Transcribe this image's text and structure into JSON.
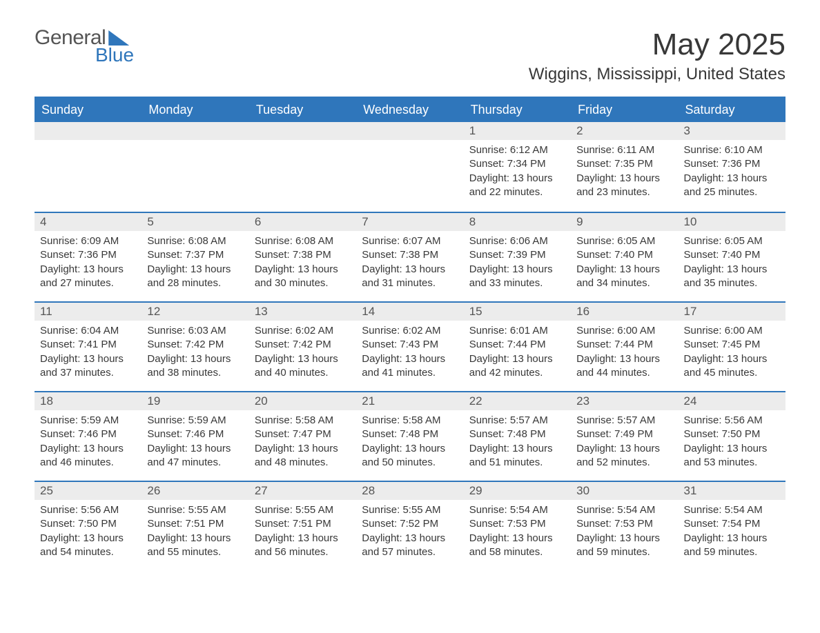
{
  "logo": {
    "line1": "General",
    "line2": "Blue"
  },
  "header": {
    "month_title": "May 2025",
    "location": "Wiggins, Mississippi, United States"
  },
  "colors": {
    "header_bg": "#2f76bb",
    "header_text": "#ffffff",
    "daynum_bg": "#ececec",
    "rule": "#2f76bb",
    "body_text": "#383838"
  },
  "calendar": {
    "weekday_labels": [
      "Sunday",
      "Monday",
      "Tuesday",
      "Wednesday",
      "Thursday",
      "Friday",
      "Saturday"
    ],
    "label_sunrise": "Sunrise:",
    "label_sunset": "Sunset:",
    "label_daylight_prefix": "Daylight:",
    "weeks": [
      [
        null,
        null,
        null,
        null,
        {
          "day": "1",
          "sunrise": "6:12 AM",
          "sunset": "7:34 PM",
          "daylight": "13 hours and 22 minutes."
        },
        {
          "day": "2",
          "sunrise": "6:11 AM",
          "sunset": "7:35 PM",
          "daylight": "13 hours and 23 minutes."
        },
        {
          "day": "3",
          "sunrise": "6:10 AM",
          "sunset": "7:36 PM",
          "daylight": "13 hours and 25 minutes."
        }
      ],
      [
        {
          "day": "4",
          "sunrise": "6:09 AM",
          "sunset": "7:36 PM",
          "daylight": "13 hours and 27 minutes."
        },
        {
          "day": "5",
          "sunrise": "6:08 AM",
          "sunset": "7:37 PM",
          "daylight": "13 hours and 28 minutes."
        },
        {
          "day": "6",
          "sunrise": "6:08 AM",
          "sunset": "7:38 PM",
          "daylight": "13 hours and 30 minutes."
        },
        {
          "day": "7",
          "sunrise": "6:07 AM",
          "sunset": "7:38 PM",
          "daylight": "13 hours and 31 minutes."
        },
        {
          "day": "8",
          "sunrise": "6:06 AM",
          "sunset": "7:39 PM",
          "daylight": "13 hours and 33 minutes."
        },
        {
          "day": "9",
          "sunrise": "6:05 AM",
          "sunset": "7:40 PM",
          "daylight": "13 hours and 34 minutes."
        },
        {
          "day": "10",
          "sunrise": "6:05 AM",
          "sunset": "7:40 PM",
          "daylight": "13 hours and 35 minutes."
        }
      ],
      [
        {
          "day": "11",
          "sunrise": "6:04 AM",
          "sunset": "7:41 PM",
          "daylight": "13 hours and 37 minutes."
        },
        {
          "day": "12",
          "sunrise": "6:03 AM",
          "sunset": "7:42 PM",
          "daylight": "13 hours and 38 minutes."
        },
        {
          "day": "13",
          "sunrise": "6:02 AM",
          "sunset": "7:42 PM",
          "daylight": "13 hours and 40 minutes."
        },
        {
          "day": "14",
          "sunrise": "6:02 AM",
          "sunset": "7:43 PM",
          "daylight": "13 hours and 41 minutes."
        },
        {
          "day": "15",
          "sunrise": "6:01 AM",
          "sunset": "7:44 PM",
          "daylight": "13 hours and 42 minutes."
        },
        {
          "day": "16",
          "sunrise": "6:00 AM",
          "sunset": "7:44 PM",
          "daylight": "13 hours and 44 minutes."
        },
        {
          "day": "17",
          "sunrise": "6:00 AM",
          "sunset": "7:45 PM",
          "daylight": "13 hours and 45 minutes."
        }
      ],
      [
        {
          "day": "18",
          "sunrise": "5:59 AM",
          "sunset": "7:46 PM",
          "daylight": "13 hours and 46 minutes."
        },
        {
          "day": "19",
          "sunrise": "5:59 AM",
          "sunset": "7:46 PM",
          "daylight": "13 hours and 47 minutes."
        },
        {
          "day": "20",
          "sunrise": "5:58 AM",
          "sunset": "7:47 PM",
          "daylight": "13 hours and 48 minutes."
        },
        {
          "day": "21",
          "sunrise": "5:58 AM",
          "sunset": "7:48 PM",
          "daylight": "13 hours and 50 minutes."
        },
        {
          "day": "22",
          "sunrise": "5:57 AM",
          "sunset": "7:48 PM",
          "daylight": "13 hours and 51 minutes."
        },
        {
          "day": "23",
          "sunrise": "5:57 AM",
          "sunset": "7:49 PM",
          "daylight": "13 hours and 52 minutes."
        },
        {
          "day": "24",
          "sunrise": "5:56 AM",
          "sunset": "7:50 PM",
          "daylight": "13 hours and 53 minutes."
        }
      ],
      [
        {
          "day": "25",
          "sunrise": "5:56 AM",
          "sunset": "7:50 PM",
          "daylight": "13 hours and 54 minutes."
        },
        {
          "day": "26",
          "sunrise": "5:55 AM",
          "sunset": "7:51 PM",
          "daylight": "13 hours and 55 minutes."
        },
        {
          "day": "27",
          "sunrise": "5:55 AM",
          "sunset": "7:51 PM",
          "daylight": "13 hours and 56 minutes."
        },
        {
          "day": "28",
          "sunrise": "5:55 AM",
          "sunset": "7:52 PM",
          "daylight": "13 hours and 57 minutes."
        },
        {
          "day": "29",
          "sunrise": "5:54 AM",
          "sunset": "7:53 PM",
          "daylight": "13 hours and 58 minutes."
        },
        {
          "day": "30",
          "sunrise": "5:54 AM",
          "sunset": "7:53 PM",
          "daylight": "13 hours and 59 minutes."
        },
        {
          "day": "31",
          "sunrise": "5:54 AM",
          "sunset": "7:54 PM",
          "daylight": "13 hours and 59 minutes."
        }
      ]
    ]
  }
}
